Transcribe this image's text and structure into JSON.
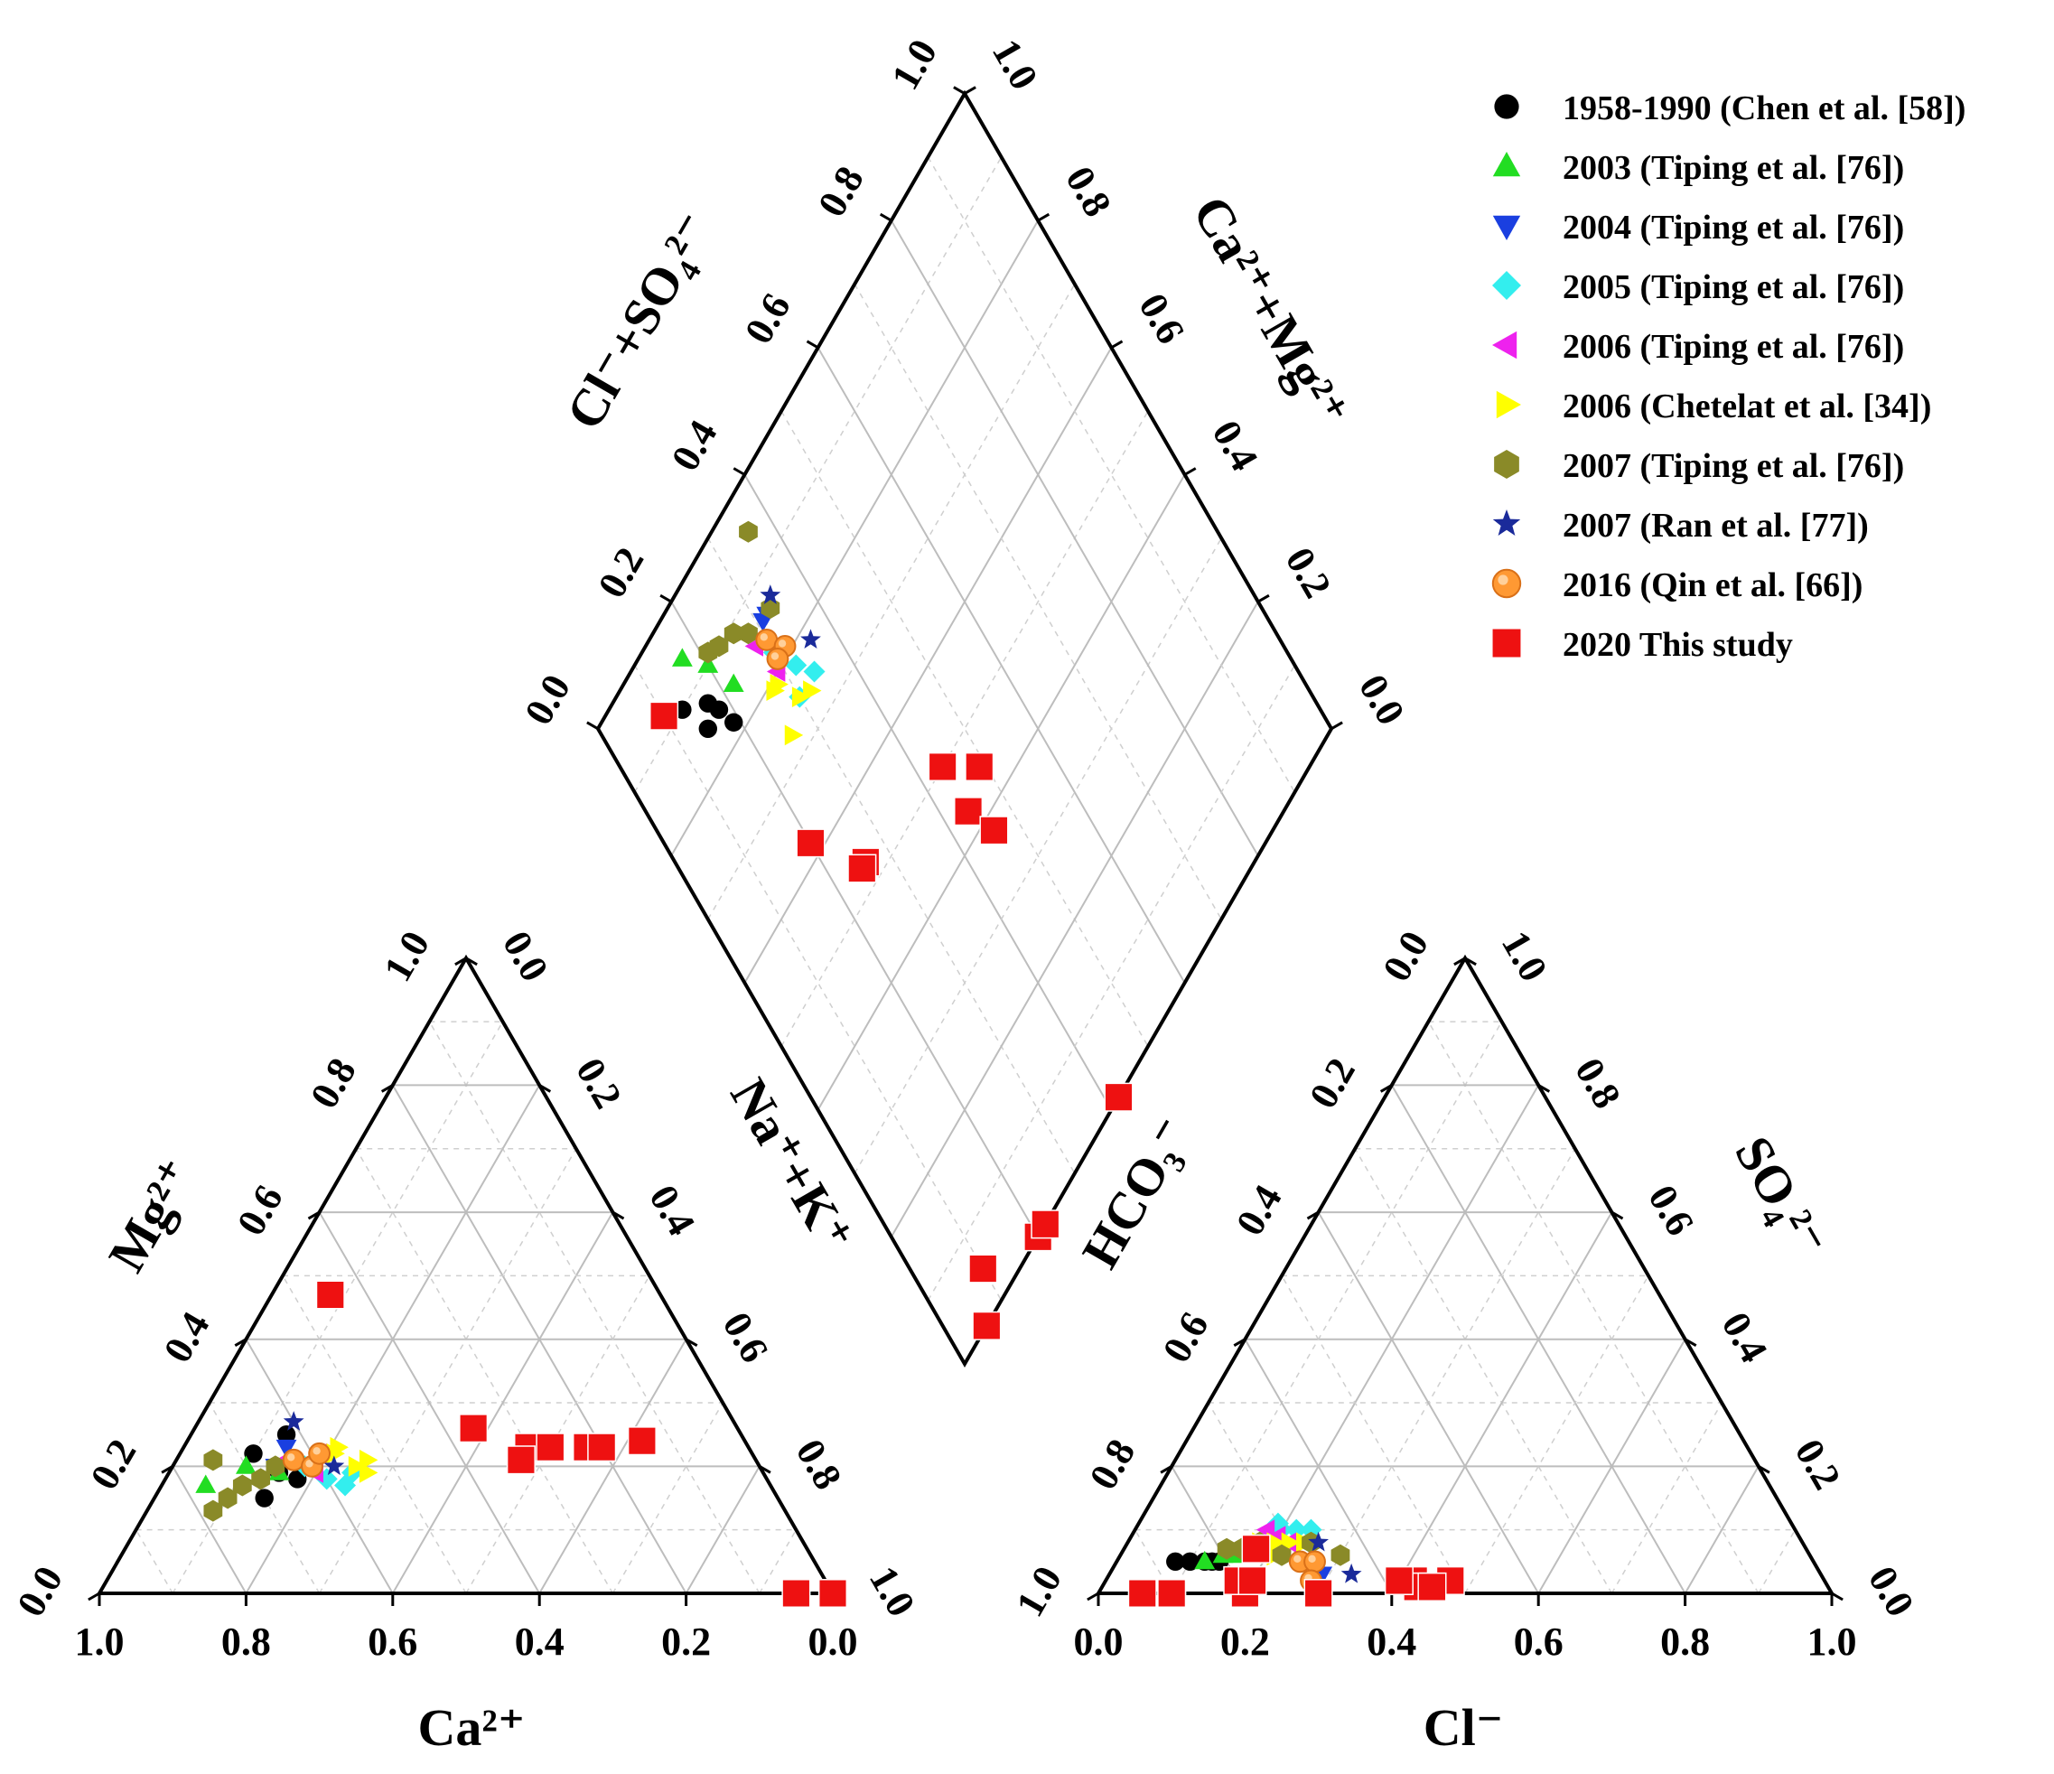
{
  "chart_data": {
    "type": "piper",
    "ticks": [
      "0.0",
      "0.2",
      "0.4",
      "0.6",
      "0.8",
      "1.0"
    ],
    "cation_triangle": {
      "bottom_axis_label": "Ca²⁺",
      "left_axis_label": "Mg²⁺",
      "right_axis_label": "Na⁺+K⁺"
    },
    "anion_triangle": {
      "bottom_axis_label": "Cl⁻",
      "left_axis_label": "HCO₃⁻",
      "right_axis_label": "SO₄²⁻"
    },
    "diamond": {
      "left_axis_label": "Cl⁻+SO₄²⁻",
      "right_axis_label": "Ca²⁺+Mg²⁺"
    },
    "legend": [
      {
        "label": "1958-1990 (Chen et al. [58])",
        "marker": "circle",
        "color": "#000000"
      },
      {
        "label": "2003 (Tiping et al. [76])",
        "marker": "triangle-up",
        "color": "#22dd22"
      },
      {
        "label": "2004 (Tiping et al. [76])",
        "marker": "triangle-down",
        "color": "#1a3fe0"
      },
      {
        "label": "2005 (Tiping et al. [76])",
        "marker": "diamond",
        "color": "#33eeee"
      },
      {
        "label": "2006 (Tiping et al. [76])",
        "marker": "triangle-left",
        "color": "#ee22ee"
      },
      {
        "label": "2006 (Chetelat et al. [34])",
        "marker": "triangle-right",
        "color": "#ffff00"
      },
      {
        "label": "2007 (Tiping et al. [76])",
        "marker": "hexagon",
        "color": "#8a8a28"
      },
      {
        "label": "2007 (Ran et al. [77])",
        "marker": "star",
        "color": "#1a2a9a"
      },
      {
        "label": "2016 (Qin et al. [66])",
        "marker": "circle-orange",
        "color": "#ff9933"
      },
      {
        "label": "2020 This study",
        "marker": "square",
        "color": "#ee1111"
      }
    ],
    "series": [
      {
        "name": "1958-1990 (Chen et al. [58])",
        "points": [
          {
            "ca": 0.7,
            "mg": 0.15,
            "cl": 0.1,
            "hco3": 0.85
          },
          {
            "ca": 0.68,
            "mg": 0.22,
            "cl": 0.08,
            "hco3": 0.87
          },
          {
            "ca": 0.62,
            "mg": 0.25,
            "cl": 0.12,
            "hco3": 0.83
          },
          {
            "ca": 0.66,
            "mg": 0.19,
            "cl": 0.13,
            "hco3": 0.82
          },
          {
            "ca": 0.64,
            "mg": 0.18,
            "cl": 0.14,
            "hco3": 0.81
          }
        ]
      },
      {
        "name": "2003 (Tiping et al. [76])",
        "points": [
          {
            "ca": 0.77,
            "mg": 0.17,
            "cl": 0.12,
            "hco3": 0.83
          },
          {
            "ca": 0.7,
            "mg": 0.2,
            "cl": 0.14,
            "hco3": 0.8
          },
          {
            "ca": 0.66,
            "mg": 0.19,
            "cl": 0.16,
            "hco3": 0.78
          }
        ]
      },
      {
        "name": "2004 (Tiping et al. [76])",
        "points": [
          {
            "ca": 0.63,
            "mg": 0.23,
            "cl": 0.29,
            "hco3": 0.68
          },
          {
            "ca": 0.66,
            "mg": 0.2,
            "cl": 0.3,
            "hco3": 0.69
          }
        ]
      },
      {
        "name": "2005 (Tiping et al. [76])",
        "points": [
          {
            "ca": 0.62,
            "mg": 0.2,
            "cl": 0.2,
            "hco3": 0.7
          },
          {
            "ca": 0.6,
            "mg": 0.18,
            "cl": 0.22,
            "hco3": 0.68
          },
          {
            "ca": 0.58,
            "mg": 0.17,
            "cl": 0.24,
            "hco3": 0.66
          },
          {
            "ca": 0.56,
            "mg": 0.19,
            "cl": 0.19,
            "hco3": 0.7
          }
        ]
      },
      {
        "name": "2006 (Tiping et al. [76])",
        "points": [
          {
            "ca": 0.64,
            "mg": 0.21,
            "cl": 0.18,
            "hco3": 0.72
          },
          {
            "ca": 0.61,
            "mg": 0.19,
            "cl": 0.2,
            "hco3": 0.71
          },
          {
            "ca": 0.59,
            "mg": 0.22,
            "cl": 0.22,
            "hco3": 0.7
          }
        ]
      },
      {
        "name": "2006 (Chetelat et al. [34])",
        "points": [
          {
            "ca": 0.57,
            "mg": 0.22,
            "cl": 0.2,
            "hco3": 0.72
          },
          {
            "ca": 0.55,
            "mg": 0.2,
            "cl": 0.22,
            "hco3": 0.7
          },
          {
            "ca": 0.53,
            "mg": 0.21,
            "cl": 0.24,
            "hco3": 0.68
          },
          {
            "ca": 0.54,
            "mg": 0.19,
            "cl": 0.18,
            "hco3": 0.74
          },
          {
            "ca": 0.56,
            "mg": 0.23,
            "cl": 0.21,
            "hco3": 0.73
          }
        ]
      },
      {
        "name": "2007 (Tiping et al. [76])",
        "points": [
          {
            "ca": 0.78,
            "mg": 0.13,
            "cl": 0.14,
            "hco3": 0.79
          },
          {
            "ca": 0.75,
            "mg": 0.15,
            "cl": 0.16,
            "hco3": 0.77
          },
          {
            "ca": 0.72,
            "mg": 0.17,
            "cl": 0.18,
            "hco3": 0.74
          },
          {
            "ca": 0.69,
            "mg": 0.18,
            "cl": 0.22,
            "hco3": 0.72
          },
          {
            "ca": 0.66,
            "mg": 0.2,
            "cl": 0.25,
            "hco3": 0.67
          },
          {
            "ca": 0.74,
            "mg": 0.21,
            "cl": 0.3,
            "hco3": 0.64
          }
        ]
      },
      {
        "name": "2007 (Ran et al. [77])",
        "points": [
          {
            "ca": 0.6,
            "mg": 0.27,
            "cl": 0.26,
            "hco3": 0.66
          },
          {
            "ca": 0.58,
            "mg": 0.2,
            "cl": 0.33,
            "hco3": 0.64
          }
        ]
      },
      {
        "name": "2016 (Qin et al. [66])",
        "points": [
          {
            "ca": 0.63,
            "mg": 0.21,
            "cl": 0.25,
            "hco3": 0.7
          },
          {
            "ca": 0.61,
            "mg": 0.2,
            "cl": 0.27,
            "hco3": 0.68
          },
          {
            "ca": 0.59,
            "mg": 0.22,
            "cl": 0.28,
            "hco3": 0.7
          }
        ]
      },
      {
        "name": "2020 This study",
        "points": [
          {
            "ca": 0.45,
            "mg": 0.47,
            "cl": 0.1,
            "hco3": 0.9
          },
          {
            "ca": 0.36,
            "mg": 0.26,
            "cl": 0.2,
            "hco3": 0.8
          },
          {
            "ca": 0.3,
            "mg": 0.23,
            "cl": 0.3,
            "hco3": 0.74
          },
          {
            "ca": 0.27,
            "mg": 0.23,
            "cl": 0.42,
            "hco3": 0.56
          },
          {
            "ca": 0.22,
            "mg": 0.23,
            "cl": 0.47,
            "hco3": 0.51
          },
          {
            "ca": 0.2,
            "mg": 0.23,
            "cl": 0.43,
            "hco3": 0.56
          },
          {
            "ca": 0.14,
            "mg": 0.24,
            "cl": 0.45,
            "hco3": 0.54
          },
          {
            "ca": 0.32,
            "mg": 0.21,
            "cl": 0.18,
            "hco3": 0.75
          },
          {
            "ca": 0.05,
            "mg": 0.0,
            "cl": 0.1,
            "hco3": 0.9
          },
          {
            "ca": 0.0,
            "mg": 0.0,
            "cl": 0.18,
            "hco3": 0.8
          },
          {
            "ca": 0.0,
            "mg": 0.0,
            "cl": 0.06,
            "hco3": 0.94
          },
          {
            "ca": 0.0,
            "mg": 0.0,
            "cl": 0.2,
            "hco3": 0.78
          },
          {
            "ca": 0.0,
            "mg": 0.0,
            "cl": 0.4,
            "hco3": 0.58
          }
        ]
      }
    ]
  }
}
